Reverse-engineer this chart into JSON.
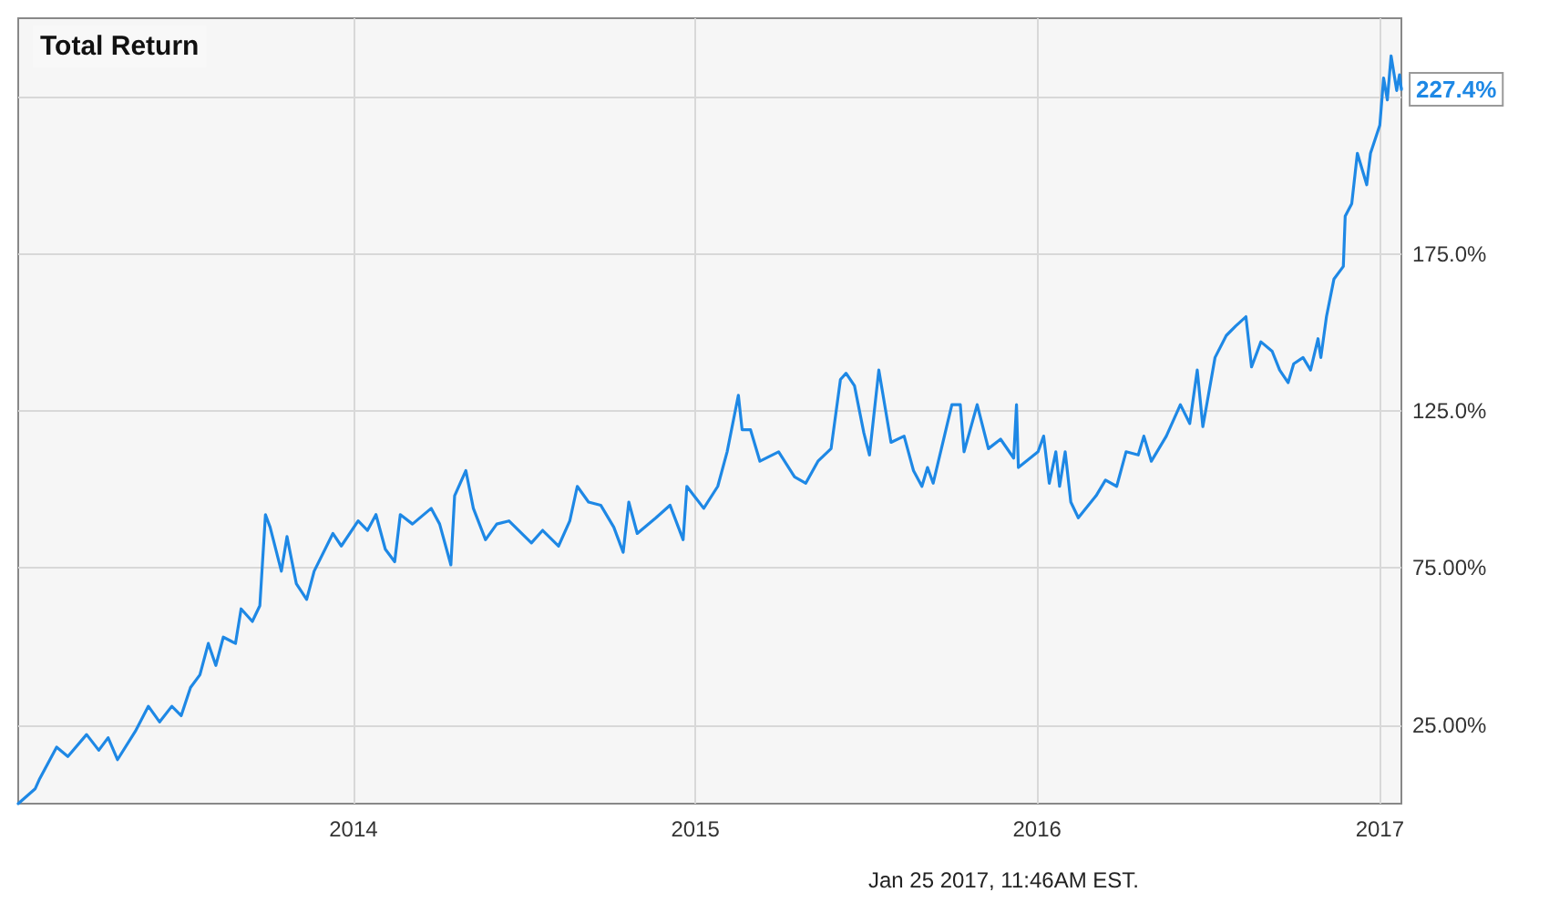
{
  "chart_data": {
    "type": "line",
    "title": "Total Return",
    "annotations": [
      "Jan 25 2017, 11:46AM EST."
    ],
    "x": [
      "2013-01-08",
      "2013-01-26",
      "2013-01-31",
      "2013-02-18",
      "2013-03-02",
      "2013-03-22",
      "2013-04-04",
      "2013-04-14",
      "2013-04-24",
      "2013-05-13",
      "2013-05-27",
      "2013-06-08",
      "2013-06-21",
      "2013-07-01",
      "2013-07-11",
      "2013-07-21",
      "2013-07-30",
      "2013-08-07",
      "2013-08-15",
      "2013-08-28",
      "2013-09-03",
      "2013-09-15",
      "2013-09-23",
      "2013-09-29",
      "2013-10-04",
      "2013-10-16",
      "2013-10-22",
      "2013-11-01",
      "2013-11-12",
      "2013-11-20",
      "2013-12-10",
      "2013-12-19",
      "2014-01-06",
      "2014-01-16",
      "2014-01-25",
      "2014-02-04",
      "2014-02-14",
      "2014-02-20",
      "2014-03-05",
      "2014-03-25",
      "2014-04-03",
      "2014-04-15",
      "2014-04-19",
      "2014-05-01",
      "2014-05-09",
      "2014-05-22",
      "2014-06-03",
      "2014-06-16",
      "2014-07-10",
      "2014-07-22",
      "2014-08-08",
      "2014-08-20",
      "2014-08-28",
      "2014-09-09",
      "2014-09-22",
      "2014-10-06",
      "2014-10-16",
      "2014-10-22",
      "2014-10-31",
      "2014-11-20",
      "2014-12-05",
      "2014-12-19",
      "2014-12-23",
      "2015-01-10",
      "2015-01-25",
      "2015-02-04",
      "2015-02-16",
      "2015-02-20",
      "2015-03-01",
      "2015-03-11",
      "2015-03-31",
      "2015-04-17",
      "2015-04-29",
      "2015-05-12",
      "2015-05-26",
      "2015-06-05",
      "2015-06-11",
      "2015-06-20",
      "2015-06-30",
      "2015-07-06",
      "2015-07-16",
      "2015-07-29",
      "2015-08-12",
      "2015-08-22",
      "2015-08-31",
      "2015-09-06",
      "2015-09-12",
      "2015-10-02",
      "2015-10-11",
      "2015-10-15",
      "2015-10-29",
      "2015-11-10",
      "2015-11-23",
      "2015-12-07",
      "2015-12-10",
      "2015-12-12",
      "2016-01-02",
      "2016-01-08",
      "2016-01-14",
      "2016-01-21",
      "2016-01-25",
      "2016-01-31",
      "2016-02-06",
      "2016-02-14",
      "2016-03-04",
      "2016-03-14",
      "2016-03-26",
      "2016-04-05",
      "2016-04-18",
      "2016-04-24",
      "2016-05-02",
      "2016-05-18",
      "2016-06-02",
      "2016-06-12",
      "2016-06-20",
      "2016-06-26",
      "2016-07-09",
      "2016-07-21",
      "2016-07-31",
      "2016-08-11",
      "2016-08-17",
      "2016-08-27",
      "2016-09-08",
      "2016-09-16",
      "2016-09-25",
      "2016-10-01",
      "2016-10-11",
      "2016-10-19",
      "2016-10-27",
      "2016-10-30",
      "2016-11-05",
      "2016-11-13",
      "2016-11-23",
      "2016-11-25",
      "2016-12-02",
      "2016-12-08",
      "2016-12-18",
      "2016-12-22",
      "2017-01-01",
      "2017-01-05",
      "2017-01-09",
      "2017-01-13",
      "2017-01-19",
      "2017-01-22",
      "2017-01-24"
    ],
    "series": [
      {
        "color": "#1e88e5",
        "values": [
          0,
          4.7,
          8,
          18,
          15,
          22,
          17,
          21,
          14,
          23,
          31,
          26,
          31,
          28,
          37,
          41,
          51,
          44,
          53,
          51,
          62,
          58,
          63,
          92,
          88,
          74,
          85,
          70,
          65,
          74,
          86,
          82,
          90,
          87,
          92,
          81,
          77,
          92,
          89,
          94,
          89,
          76,
          98,
          106,
          94,
          84,
          89,
          90,
          83,
          87,
          82,
          90,
          101,
          96,
          95,
          88,
          80,
          96,
          86,
          91,
          95,
          84,
          101,
          94,
          101,
          112,
          130,
          119,
          119,
          109,
          112,
          104,
          102,
          109,
          113,
          135,
          137,
          133,
          118,
          111,
          138,
          115,
          117,
          106,
          101,
          107,
          102,
          127,
          127,
          112,
          127,
          113,
          116,
          110,
          127,
          107,
          112,
          117,
          102,
          112,
          101,
          112,
          96,
          91,
          98,
          103,
          101,
          112,
          111,
          117,
          109,
          117,
          127,
          121,
          138,
          120,
          142,
          149,
          152,
          155,
          139,
          147,
          144,
          138,
          134,
          140,
          142,
          138,
          148,
          142,
          155,
          167,
          171,
          187,
          191,
          207,
          197,
          207,
          216,
          231,
          224,
          238,
          227,
          232,
          227.4
        ],
        "value_labels": [
          null,
          null,
          null,
          null,
          null,
          null,
          null,
          null,
          null,
          null,
          null,
          null,
          null,
          null,
          null,
          null,
          null,
          null,
          null,
          null,
          null,
          null,
          null,
          null,
          null,
          null,
          null,
          null,
          null,
          null,
          null,
          null,
          null,
          null,
          null,
          null,
          null,
          null,
          null,
          null,
          null,
          null,
          null,
          null,
          null,
          null,
          null,
          null,
          null,
          null,
          null,
          null,
          null,
          null,
          null,
          null,
          null,
          null,
          null,
          null,
          null,
          null,
          null,
          null,
          null,
          null,
          null,
          null,
          null,
          null,
          null,
          null,
          null,
          null,
          null,
          null,
          null,
          null,
          null,
          null,
          null,
          null,
          null,
          null,
          null,
          null,
          null,
          null,
          null,
          null,
          null,
          null,
          null,
          null,
          null,
          null,
          null,
          null,
          null,
          null,
          null,
          null,
          null,
          null,
          null,
          null,
          null,
          null,
          null,
          null,
          null,
          null,
          null,
          null,
          null,
          null,
          null,
          null,
          null,
          null,
          null,
          null,
          null,
          null,
          null,
          null,
          null,
          null,
          null,
          null,
          null,
          null,
          null,
          null,
          null,
          null,
          null,
          null,
          null,
          null,
          null,
          null,
          null,
          null,
          "227.4%"
        ]
      }
    ],
    "xlim": [
      "2013-01-08",
      "2017-01-24"
    ],
    "xticks": [
      "2014",
      "2015",
      "2016",
      "2017"
    ],
    "ylim": [
      0,
      250
    ],
    "yticks": [
      {
        "value": 25,
        "label": "25.00%"
      },
      {
        "value": 75,
        "label": "75.00%"
      },
      {
        "value": 125,
        "label": "125.0%"
      },
      {
        "value": 175,
        "label": "175.0%"
      },
      {
        "value": 225,
        "label": null
      }
    ],
    "grid": true,
    "marker": "none",
    "line_style": "solid"
  }
}
